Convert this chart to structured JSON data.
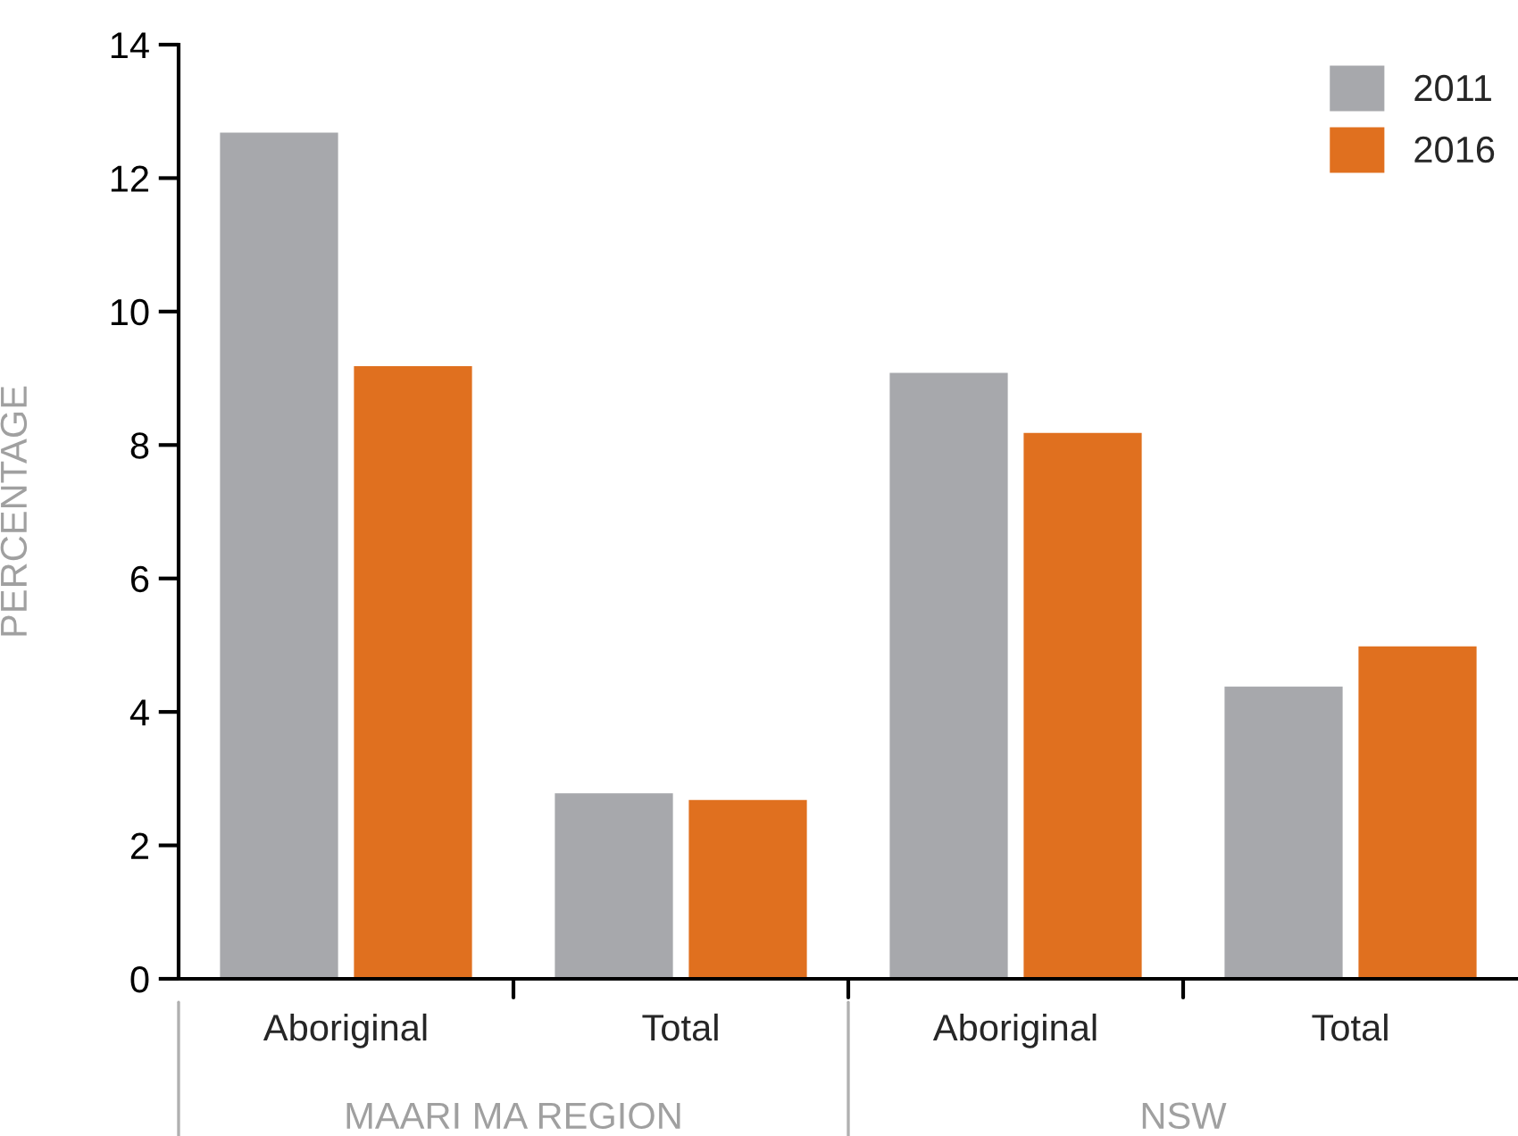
{
  "chart_data": {
    "type": "bar",
    "ylabel": "PERCENTAGE",
    "categories": [
      "Aboriginal",
      "Total",
      "Aboriginal",
      "Total"
    ],
    "series": [
      {
        "name": "2011",
        "color": "#a7a8ac",
        "values": [
          12.7,
          2.8,
          9.1,
          4.4
        ]
      },
      {
        "name": "2016",
        "color": "#e0701f",
        "values": [
          9.2,
          2.7,
          8.2,
          5.0
        ]
      }
    ],
    "ylim": [
      0,
      14
    ],
    "yticks": [
      0,
      2,
      4,
      6,
      8,
      10,
      12,
      14
    ],
    "grid": false,
    "legend": "top right",
    "annotations": [
      "MAARI MA REGION",
      "NSW"
    ]
  }
}
